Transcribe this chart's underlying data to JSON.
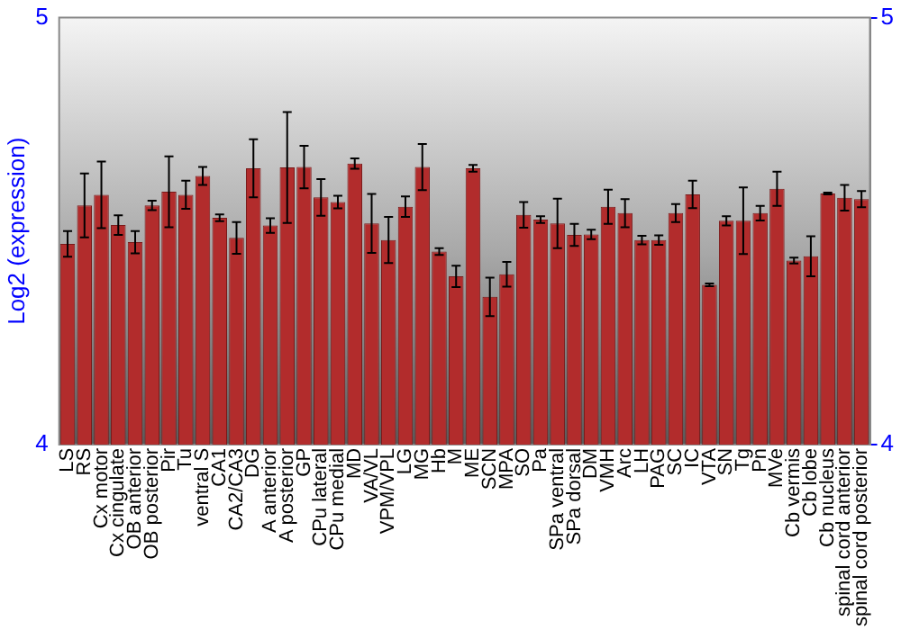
{
  "chart_data": {
    "type": "bar",
    "ylabel": "Log2 (expression)",
    "categories": [
      "LS",
      "RS",
      "Cx motor",
      "Cx cingulate",
      "OB anterior",
      "OB posterior",
      "Pir",
      "Tu",
      "ventral S",
      "CA1",
      "CA2/CA3",
      "DG",
      "A anterior",
      "A posterior",
      "GP",
      "CPu lateral",
      "CPu medial",
      "MD",
      "VA/VL",
      "VPM/VPL",
      "LG",
      "MG",
      "Hb",
      "M",
      "ME",
      "SCN",
      "MPA",
      "SO",
      "Pa",
      "SPa ventral",
      "SPa dorsal",
      "DM",
      "VMH",
      "Arc",
      "LH",
      "PAG",
      "SC",
      "IC",
      "VTA",
      "SN",
      "Tg",
      "Pn",
      "MVe",
      "Cb vermis",
      "Cb lobe",
      "Cb nucleus",
      "spinal cord anterior",
      "spinal cord posterior"
    ],
    "values": [
      4.47,
      4.56,
      4.585,
      4.514,
      4.474,
      4.56,
      4.592,
      4.585,
      4.629,
      4.531,
      4.484,
      4.647,
      4.513,
      4.649,
      4.65,
      4.579,
      4.568,
      4.658,
      4.518,
      4.479,
      4.557,
      4.65,
      4.452,
      4.394,
      4.647,
      4.346,
      4.399,
      4.538,
      4.527,
      4.518,
      4.491,
      4.492,
      4.557,
      4.542,
      4.479,
      4.479,
      4.542,
      4.586,
      4.374,
      4.524,
      4.524,
      4.542,
      4.599,
      4.431,
      4.441,
      4.588,
      4.578,
      4.575
    ],
    "errors": [
      0.03,
      0.075,
      0.078,
      0.023,
      0.026,
      0.011,
      0.083,
      0.033,
      0.021,
      0.008,
      0.037,
      0.068,
      0.017,
      0.13,
      0.05,
      0.043,
      0.015,
      0.012,
      0.069,
      0.054,
      0.024,
      0.054,
      0.008,
      0.025,
      0.008,
      0.045,
      0.029,
      0.03,
      0.008,
      0.058,
      0.026,
      0.011,
      0.04,
      0.033,
      0.01,
      0.011,
      0.021,
      0.032,
      0.003,
      0.011,
      0.078,
      0.017,
      0.04,
      0.007,
      0.047,
      0.002,
      0.03,
      0.019
    ],
    "color": "#b22c2c",
    "ylim": [
      4,
      5
    ],
    "yticks": [
      4,
      5
    ],
    "y2lim": [
      4,
      5
    ],
    "y2ticks": [
      4,
      5
    ],
    "grid": false
  }
}
